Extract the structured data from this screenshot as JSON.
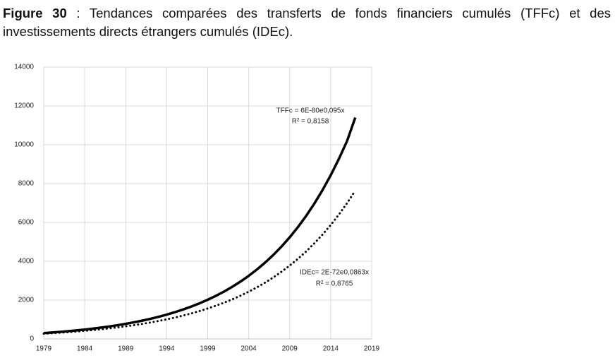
{
  "chart_data": {
    "type": "line",
    "figure_label": "Figure 30",
    "title": ": Tendances comparées des transferts de fonds financiers cumulés (TFFc) et des investissements directs étrangers cumulés (IDEc).",
    "x": [
      1979,
      1980,
      1981,
      1982,
      1983,
      1984,
      1985,
      1986,
      1987,
      1988,
      1989,
      1990,
      1991,
      1992,
      1993,
      1994,
      1995,
      1996,
      1997,
      1998,
      1999,
      2000,
      2001,
      2002,
      2003,
      2004,
      2005,
      2006,
      2007,
      2008,
      2009,
      2010,
      2011,
      2012,
      2013,
      2014,
      2015,
      2016,
      2017
    ],
    "series": [
      {
        "name": "TFFc",
        "color": "#000000",
        "style": "solid",
        "values": [
          300,
          330,
          363,
          399,
          439,
          483,
          531,
          585,
          643,
          707,
          778,
          856,
          941,
          1035,
          1139,
          1253,
          1378,
          1516,
          1668,
          1834,
          2018,
          2220,
          2441,
          2686,
          2954,
          3249,
          3574,
          3932,
          4325,
          4757,
          5233,
          5756,
          6332,
          6965,
          7662,
          8428,
          9271,
          10198,
          11400
        ]
      },
      {
        "name": "IDEc",
        "color": "#000000",
        "style": "dotted",
        "values": [
          270,
          295,
          322,
          351,
          383,
          419,
          457,
          499,
          545,
          595,
          650,
          710,
          775,
          846,
          924,
          1009,
          1102,
          1203,
          1314,
          1435,
          1567,
          1711,
          1868,
          2040,
          2228,
          2433,
          2657,
          2901,
          3168,
          3459,
          3778,
          4125,
          4505,
          4919,
          5372,
          5866,
          6406,
          6995,
          7639
        ]
      }
    ],
    "annotations": [
      "TFFc = 6E-80e0,095x",
      "R² = 0,8158",
      "IDEc= 2E-72e0,0863x",
      "R² = 0,8765"
    ],
    "xlim": [
      1979,
      2019
    ],
    "xticks": [
      1979,
      1984,
      1989,
      1994,
      1999,
      2004,
      2009,
      2014,
      2019
    ],
    "ylim": [
      0,
      14000
    ],
    "yticks": [
      0,
      2000,
      4000,
      6000,
      8000,
      10000,
      12000,
      14000
    ],
    "grid": true
  }
}
